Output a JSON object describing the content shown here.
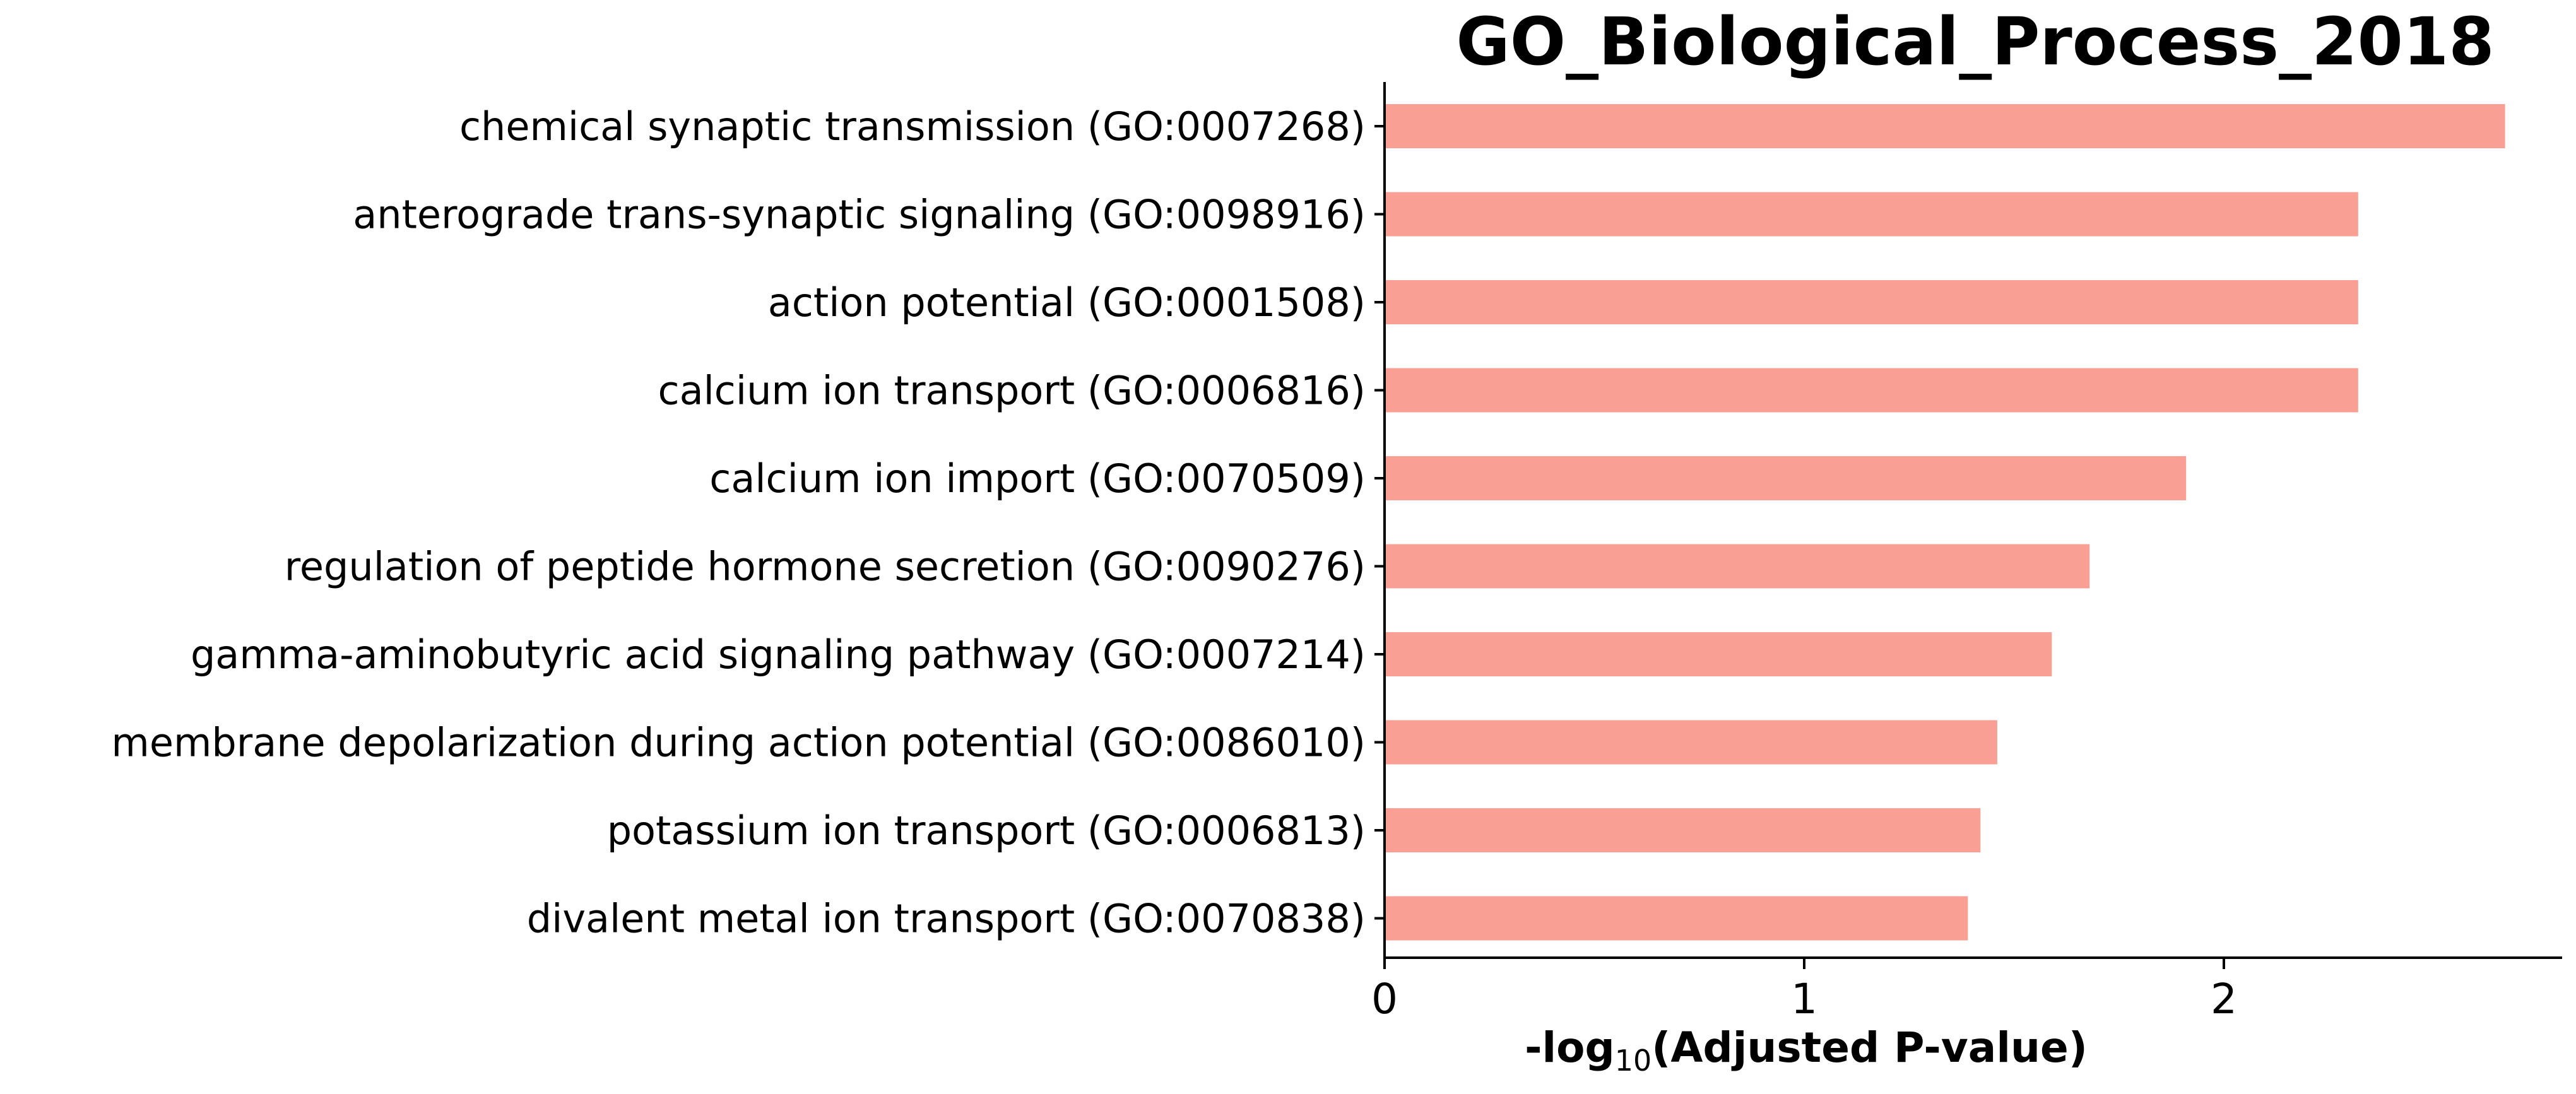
{
  "chart_data": {
    "type": "bar",
    "orientation": "horizontal",
    "title": "GO_Biological_Process_2018",
    "xlabel": {
      "prefix": "-log",
      "subscript": "10",
      "suffix": "(Adjusted P-value)"
    },
    "ylabel": "",
    "xlim": [
      0,
      2.8
    ],
    "xticks": [
      0,
      1,
      2
    ],
    "grid": false,
    "legend": "none",
    "bar_color": "#FA9F94",
    "axis_color": "#000000",
    "categories": [
      "chemical synaptic transmission (GO:0007268)",
      "anterograde trans-synaptic signaling (GO:0098916)",
      "action potential (GO:0001508)",
      "calcium ion transport (GO:0006816)",
      "calcium ion import (GO:0070509)",
      "regulation of peptide hormone secretion (GO:0090276)",
      "gamma-aminobutyric acid signaling pathway (GO:0007214)",
      "membrane depolarization during action potential (GO:0086010)",
      "potassium ion transport (GO:0006813)",
      "divalent metal ion transport (GO:0070838)"
    ],
    "values": [
      2.67,
      2.32,
      2.32,
      2.32,
      1.91,
      1.68,
      1.59,
      1.46,
      1.42,
      1.39
    ]
  }
}
